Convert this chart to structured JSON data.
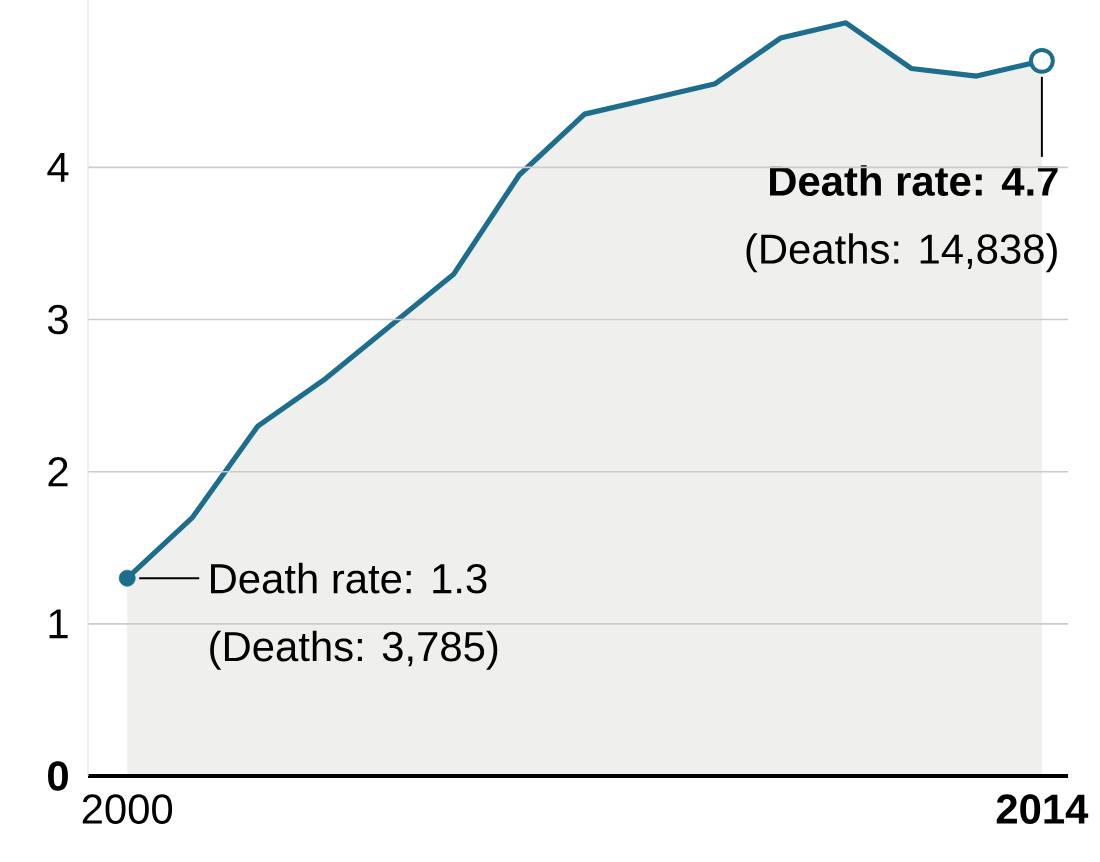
{
  "chart_data": {
    "type": "area",
    "color": "#1c6e8c",
    "x": [
      2000,
      2001,
      2002,
      2003,
      2004,
      2005,
      2006,
      2007,
      2008,
      2009,
      2010,
      2011,
      2012,
      2013,
      2014
    ],
    "values": [
      1.3,
      1.7,
      2.3,
      2.6,
      2.95,
      3.3,
      3.95,
      4.35,
      4.45,
      4.55,
      4.85,
      4.95,
      4.65,
      4.6,
      4.7
    ],
    "xlim": [
      1999.4,
      2014.4
    ],
    "ylim": [
      0,
      5.1
    ],
    "xticks": [
      2000,
      {
        "value": 2014,
        "label": "2014"
      }
    ],
    "yticks": [
      {
        "value": 0,
        "label": "0"
      },
      1,
      2,
      3,
      4
    ],
    "grid": "y",
    "annotations": [
      {
        "text": "Death rate: 1.3",
        "x": 2000,
        "y": 1.3
      },
      "(Deaths: 3,785)",
      {
        "text": "Death rate: 4.7",
        "x": 2014,
        "y": 4.7
      },
      "(Deaths: 14,838)"
    ]
  }
}
